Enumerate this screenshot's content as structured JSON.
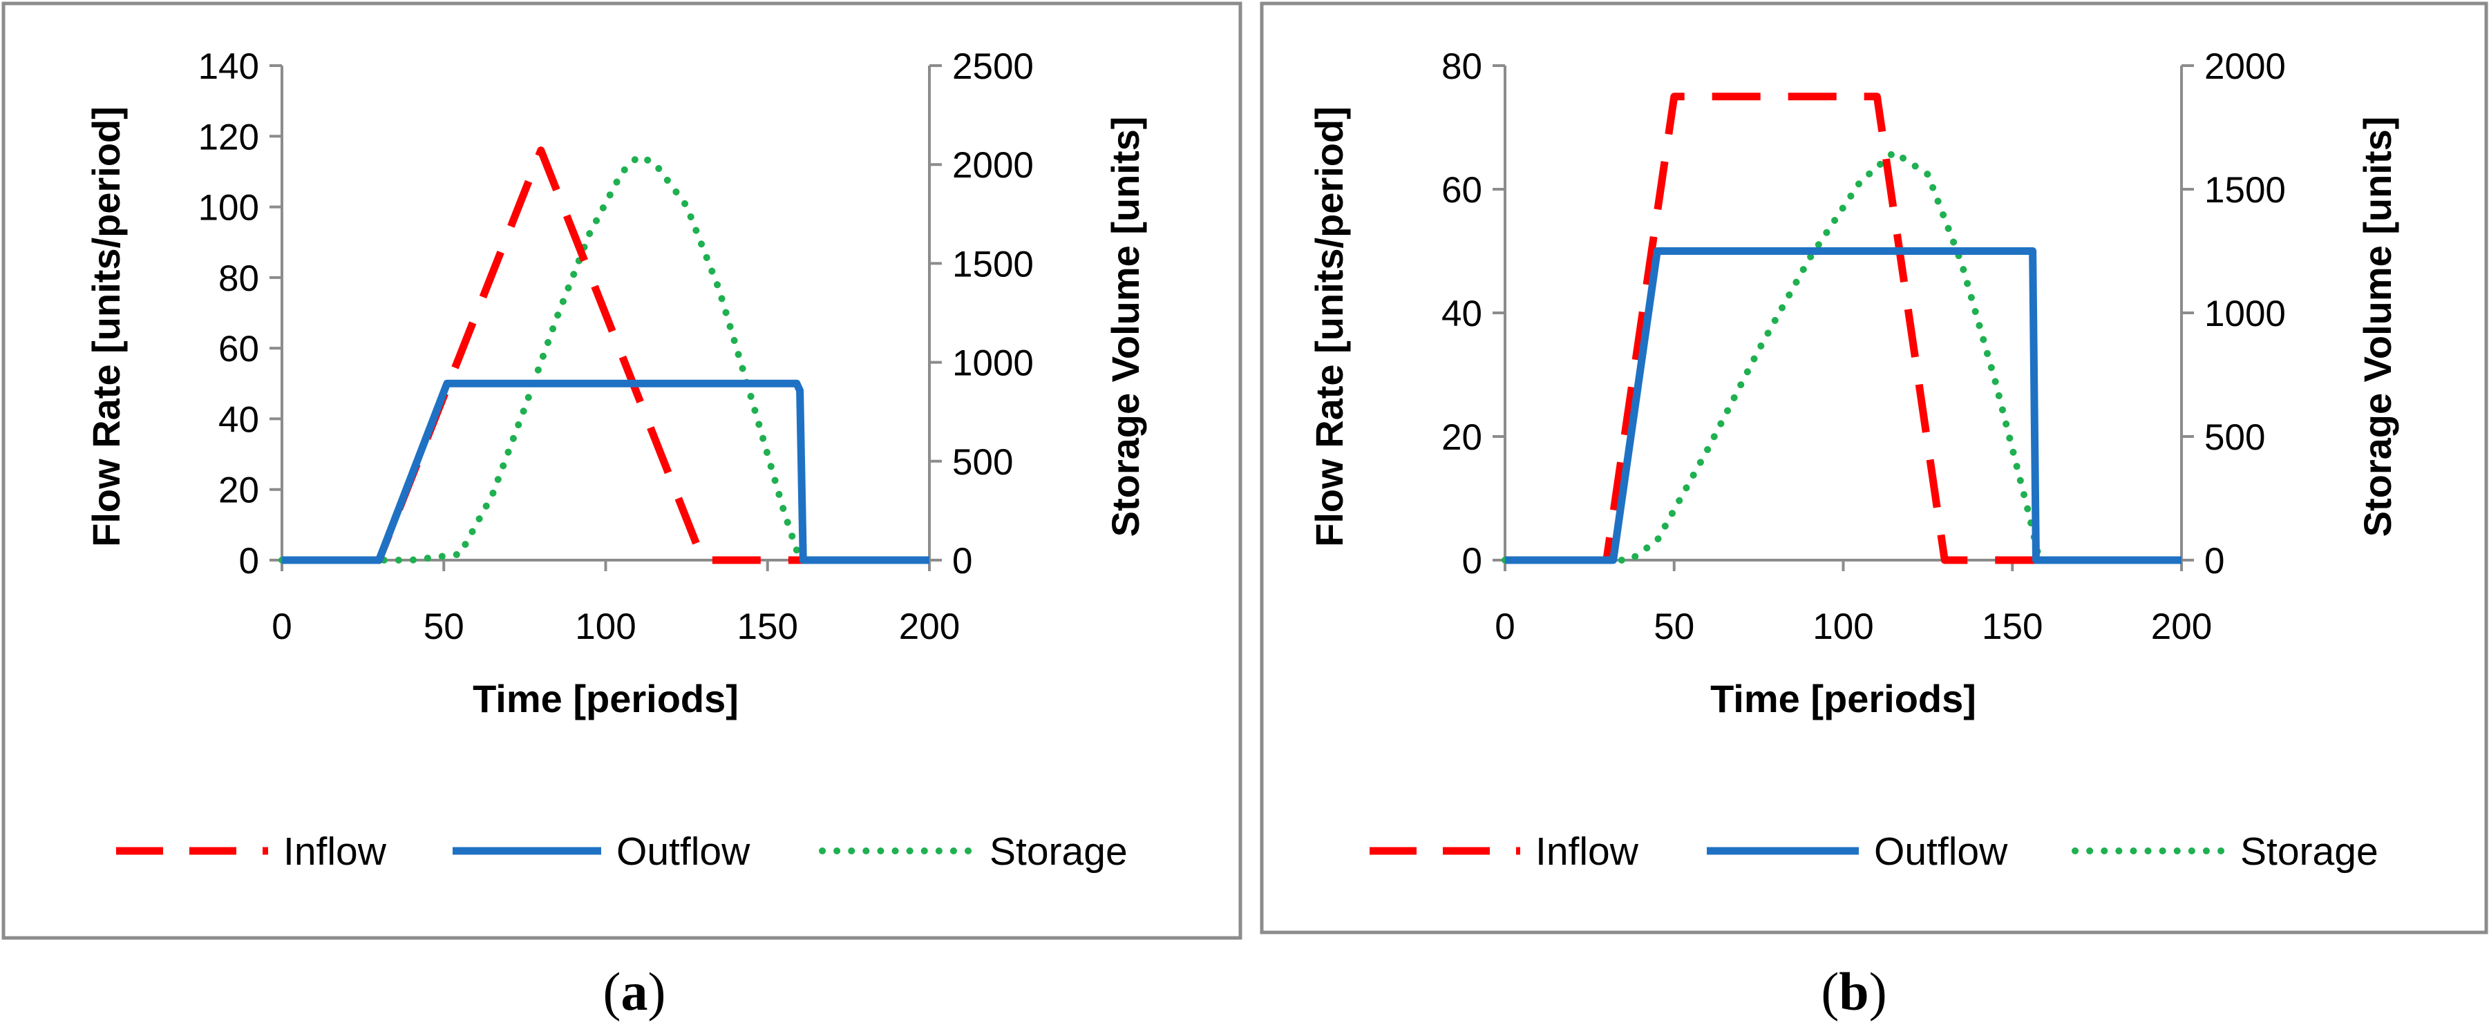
{
  "colors": {
    "inflow": "#ff0000",
    "outflow": "#1f72c3",
    "storage": "#1fb050",
    "axis": "#8c8c8c",
    "frame": "#8c8c8c",
    "text": "#000000"
  },
  "chart_data": [
    {
      "type": "line",
      "panel_label": "a",
      "xlabel": "Time [periods]",
      "ylabel": "Flow Rate [units/period]",
      "y2label": "Storage Volume [units]",
      "xlim": [
        0,
        200
      ],
      "ylim": [
        0,
        140
      ],
      "y2lim": [
        0,
        2500
      ],
      "xticks": [
        0,
        50,
        100,
        150,
        200
      ],
      "yticks": [
        0,
        20,
        40,
        60,
        80,
        100,
        120,
        140
      ],
      "y2ticks": [
        0,
        500,
        1000,
        1500,
        2000,
        2500
      ],
      "legend_position": "bottom",
      "series": [
        {
          "name": "Inflow",
          "axis": "left",
          "style": "dashed",
          "x": [
            0,
            30,
            80,
            130,
            160,
            200
          ],
          "y": [
            0,
            0,
            116,
            0,
            0,
            0
          ]
        },
        {
          "name": "Outflow",
          "axis": "left",
          "style": "solid",
          "x": [
            0,
            30,
            51,
            159,
            160,
            161,
            200
          ],
          "y": [
            0,
            0,
            50,
            50,
            48,
            0,
            0
          ]
        },
        {
          "name": "Storage",
          "axis": "right",
          "style": "dotted",
          "x": [
            0,
            40,
            55,
            65,
            75,
            85,
            95,
            105,
            110,
            115,
            125,
            135,
            145,
            155,
            160,
            200
          ],
          "y": [
            0,
            0,
            30,
            330,
            770,
            1230,
            1650,
            1960,
            2040,
            2010,
            1790,
            1370,
            820,
            250,
            0,
            0
          ]
        }
      ]
    },
    {
      "type": "line",
      "panel_label": "b",
      "xlabel": "Time [periods]",
      "ylabel": "Flow Rate [units/period]",
      "y2label": "Storage Volume [units]",
      "xlim": [
        0,
        200
      ],
      "ylim": [
        0,
        80
      ],
      "y2lim": [
        0,
        2000
      ],
      "xticks": [
        0,
        50,
        100,
        150,
        200
      ],
      "yticks": [
        0,
        20,
        40,
        60,
        80
      ],
      "y2ticks": [
        0,
        500,
        1000,
        1500,
        2000
      ],
      "legend_position": "bottom",
      "series": [
        {
          "name": "Inflow",
          "axis": "left",
          "style": "dashed",
          "x": [
            0,
            30,
            50,
            110,
            130,
            155,
            200
          ],
          "y": [
            0,
            0,
            75,
            75,
            0,
            0,
            0
          ]
        },
        {
          "name": "Outflow",
          "axis": "left",
          "style": "solid",
          "x": [
            0,
            32,
            45,
            156,
            157,
            200
          ],
          "y": [
            0,
            0,
            50,
            50,
            0,
            0
          ]
        },
        {
          "name": "Storage",
          "axis": "right",
          "style": "dotted",
          "x": [
            0,
            37,
            45,
            60,
            75,
            90,
            105,
            115,
            125,
            135,
            145,
            155,
            158,
            200
          ],
          "y": [
            0,
            0,
            80,
            450,
            850,
            1220,
            1530,
            1650,
            1560,
            1200,
            720,
            180,
            0,
            0
          ]
        }
      ]
    }
  ]
}
